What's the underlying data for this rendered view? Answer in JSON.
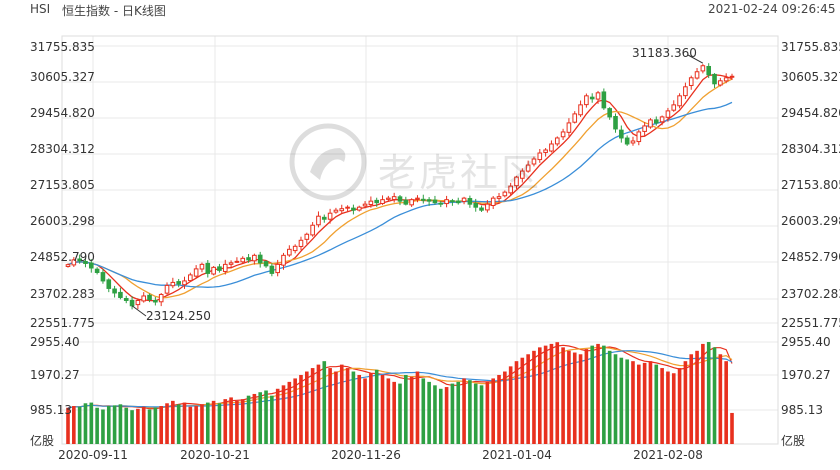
{
  "header": {
    "symbol": "HSI",
    "title": "恒生指数 - 日K线图",
    "timestamp": "2021-02-24 09:26:45"
  },
  "watermark": "老虎社区",
  "colors": {
    "up": "#e8301e",
    "down": "#2ea043",
    "ma5": "#e8301e",
    "ma10": "#f0a030",
    "ma20": "#3a8ed8",
    "grid": "#e8e8e8"
  },
  "price_axis": {
    "left_labels": [
      "31755.835",
      "30605.327",
      "29454.820",
      "28304.312",
      "27153.805",
      "26003.298",
      "24852.790",
      "23702.283",
      "22551.775"
    ],
    "right_labels": [
      "31755.835",
      "30605.327",
      "29454.820",
      "28304.312",
      "27153.805",
      "26003.298",
      "24852.790",
      "23702.283",
      "22551.775"
    ]
  },
  "volume_axis": {
    "left_labels": [
      "2955.40",
      "1970.27",
      "985.13",
      "亿股"
    ],
    "right_labels": [
      "2955.40",
      "1970.27",
      "985.13",
      "亿股"
    ]
  },
  "annotations": {
    "high": "31183.360",
    "low": "23124.250"
  },
  "chart_data": {
    "type": "candlestick",
    "title": "恒生指数 - 日K线图",
    "dates": [
      "2020-09-11",
      "2020-10-21",
      "2020-11-26",
      "2021-01-04",
      "2021-02-08"
    ],
    "price_range": [
      22551.775,
      31755.835
    ],
    "volume_range": [
      0,
      2955.4
    ],
    "volume_unit": "亿股",
    "high": 31183.36,
    "low": 23124.25,
    "closes": [
      24490,
      24650,
      24620,
      24530,
      24380,
      24230,
      23950,
      23700,
      23550,
      23400,
      23300,
      23124,
      23300,
      23450,
      23330,
      23250,
      23500,
      23800,
      23900,
      23850,
      23950,
      24150,
      24350,
      24500,
      24200,
      24400,
      24300,
      24500,
      24550,
      24600,
      24700,
      24650,
      24800,
      24550,
      24450,
      24200,
      24500,
      24800,
      25000,
      25100,
      25300,
      25500,
      25800,
      26100,
      26000,
      26200,
      26300,
      26350,
      26400,
      26300,
      26400,
      26500,
      26600,
      26550,
      26650,
      26700,
      26750,
      26600,
      26500,
      26650,
      26700,
      26650,
      26600,
      26550,
      26500,
      26650,
      26600,
      26550,
      26700,
      26500,
      26400,
      26300,
      26500,
      26700,
      26750,
      26900,
      27100,
      27400,
      27600,
      27800,
      28000,
      28200,
      28300,
      28500,
      28700,
      28900,
      29200,
      29500,
      29800,
      30100,
      30000,
      30200,
      29700,
      29400,
      29000,
      28700,
      28500,
      28600,
      28900,
      29100,
      29300,
      29200,
      29400,
      29600,
      29800,
      30100,
      30400,
      30700,
      30900,
      31100,
      30800,
      30500,
      30600,
      30700,
      30750
    ],
    "volumes": [
      1050,
      1100,
      1080,
      1180,
      1200,
      1050,
      1000,
      1100,
      1120,
      1150,
      1050,
      980,
      1020,
      1080,
      1000,
      1050,
      1100,
      1180,
      1250,
      1150,
      1200,
      1080,
      1100,
      1150,
      1200,
      1250,
      1180,
      1300,
      1350,
      1250,
      1300,
      1400,
      1450,
      1500,
      1550,
      1400,
      1600,
      1700,
      1800,
      1900,
      2000,
      2100,
      2200,
      2300,
      2400,
      2200,
      2100,
      2300,
      2200,
      2100,
      2000,
      1900,
      2050,
      2150,
      2000,
      1900,
      1800,
      1750,
      2000,
      1950,
      2100,
      1900,
      1800,
      1700,
      1600,
      1650,
      1750,
      1800,
      1900,
      1850,
      1750,
      1700,
      1800,
      1900,
      2000,
      2100,
      2250,
      2400,
      2500,
      2600,
      2700,
      2800,
      2850,
      2900,
      2950,
      2800,
      2700,
      2650,
      2600,
      2750,
      2850,
      2900,
      2850,
      2700,
      2600,
      2500,
      2450,
      2400,
      2300,
      2350,
      2400,
      2300,
      2200,
      2100,
      2050,
      2200,
      2400,
      2600,
      2700,
      2900,
      2955,
      2800,
      2600,
      2400,
      900
    ]
  }
}
